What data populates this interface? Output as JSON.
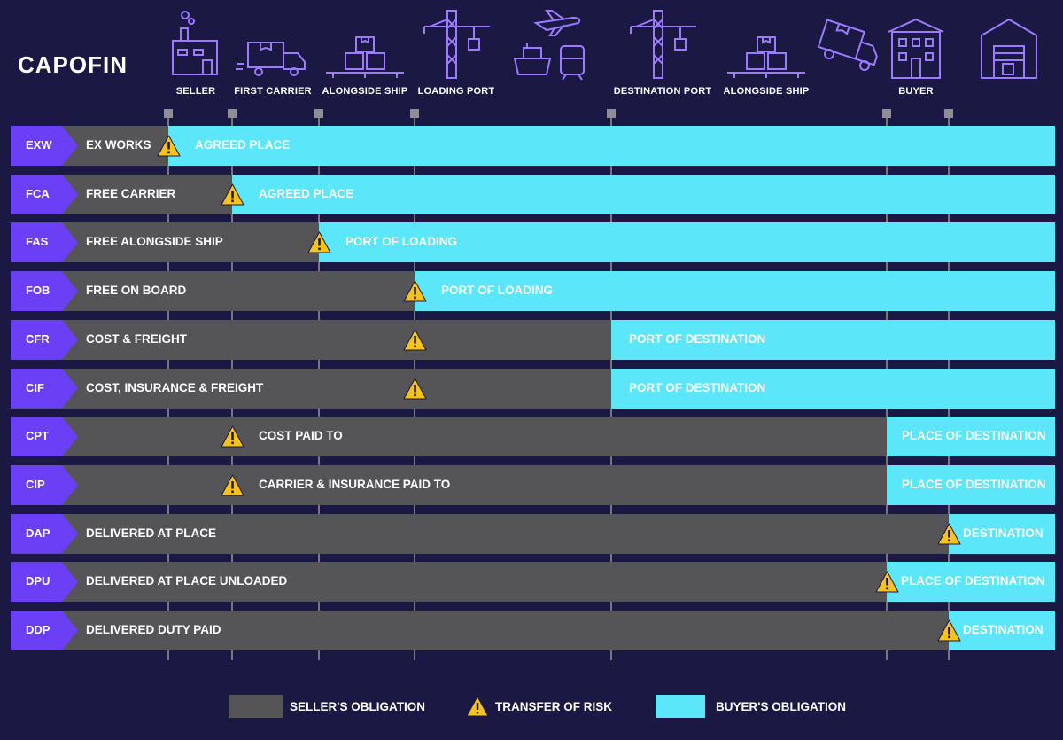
{
  "brand": "CAPOFIN",
  "stages": [
    {
      "label": "SELLER",
      "icon": "factory-icon"
    },
    {
      "label": "FIRST CARRIER",
      "icon": "truck-icon"
    },
    {
      "label": "ALONGSIDE SHIP",
      "icon": "boxes-pallet-icon"
    },
    {
      "label": "LOADING PORT",
      "icon": "crane-icon"
    },
    {
      "label": "",
      "icon": "plane-ship-train-icon"
    },
    {
      "label": "DESTINATION PORT",
      "icon": "crane-icon"
    },
    {
      "label": "ALONGSIDE SHIP",
      "icon": "boxes-pallet-icon"
    },
    {
      "label": "",
      "icon": "delivery-truck-icon"
    },
    {
      "label": "BUYER",
      "icon": "building-icon"
    },
    {
      "label": "",
      "icon": "warehouse-icon"
    }
  ],
  "rows": [
    {
      "code": "EXW",
      "name": "EX WORKS",
      "dest": "AGREED PLACE",
      "risk_at": "SELLER",
      "buyer_from": "SELLER"
    },
    {
      "code": "FCA",
      "name": "FREE CARRIER",
      "dest": "AGREED PLACE",
      "risk_at": "FIRST CARRIER",
      "buyer_from": "FIRST CARRIER"
    },
    {
      "code": "FAS",
      "name": "FREE ALONGSIDE SHIP",
      "dest": "PORT OF LOADING",
      "risk_at": "ALONGSIDE SHIP",
      "buyer_from": "ALONGSIDE SHIP"
    },
    {
      "code": "FOB",
      "name": "FREE ON BOARD",
      "dest": "PORT OF LOADING",
      "risk_at": "LOADING PORT",
      "buyer_from": "LOADING PORT"
    },
    {
      "code": "CFR",
      "name": "COST & FREIGHT",
      "dest": "PORT OF DESTINATION",
      "risk_at": "LOADING PORT",
      "buyer_from": "DESTINATION PORT"
    },
    {
      "code": "CIF",
      "name": "COST, INSURANCE & FREIGHT",
      "dest": "PORT OF DESTINATION",
      "risk_at": "LOADING PORT",
      "buyer_from": "DESTINATION PORT"
    },
    {
      "code": "CPT",
      "name": "COST PAID TO",
      "dest": "PLACE OF DESTINATION",
      "risk_at": "FIRST CARRIER",
      "buyer_from": "ALONGSIDE SHIP (DESTINATION)"
    },
    {
      "code": "CIP",
      "name": "CARRIER & INSURANCE PAID TO",
      "dest": "PLACE OF DESTINATION",
      "risk_at": "FIRST CARRIER",
      "buyer_from": "ALONGSIDE SHIP (DESTINATION)"
    },
    {
      "code": "DAP",
      "name": "DELIVERED AT PLACE",
      "dest": "DESTINATION",
      "risk_at": "BUYER",
      "buyer_from": "BUYER"
    },
    {
      "code": "DPU",
      "name": "DELIVERED AT PLACE UNLOADED",
      "dest": "PLACE OF DESTINATION",
      "risk_at": "ALONGSIDE SHIP (DESTINATION)",
      "buyer_from": "ALONGSIDE SHIP (DESTINATION)"
    },
    {
      "code": "DDP",
      "name": "DELIVERED DUTY PAID",
      "dest": "DESTINATION",
      "risk_at": "BUYER",
      "buyer_from": "BUYER"
    }
  ],
  "legend": {
    "seller": "SELLER'S OBLIGATION",
    "risk": "TRANSFER OF RISK",
    "buyer": "BUYER'S OBLIGATION"
  },
  "colors": {
    "background": "#1c1844",
    "seller": "#555557",
    "buyer": "#5ce6fa",
    "tag": "#6a3ff5",
    "warning": "#f7c21a",
    "icon_stroke": "#9b7cff"
  }
}
